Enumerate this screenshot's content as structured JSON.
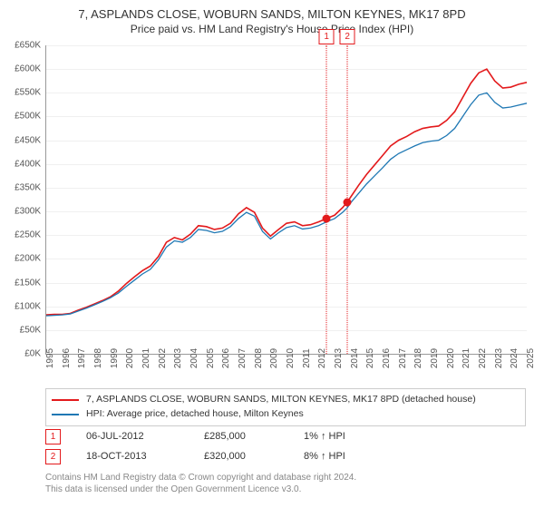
{
  "title_line1": "7, ASPLANDS CLOSE, WOBURN SANDS, MILTON KEYNES, MK17 8PD",
  "title_line2": "Price paid vs. HM Land Registry's House Price Index (HPI)",
  "chart": {
    "type": "line",
    "x_min": 1995,
    "x_max": 2025,
    "y_min": 0,
    "y_max": 650000,
    "y_tick_step": 50000,
    "x_tick_step": 1,
    "background_color": "#ffffff",
    "grid_color": "#f0f0f0",
    "axis_color": "#999999",
    "series": [
      {
        "name": "property",
        "label": "7, ASPLANDS CLOSE, WOBURN SANDS, MILTON KEYNES, MK17 8PD (detached house)",
        "color": "#e31a1c",
        "line_width": 1.6,
        "data": [
          [
            1995,
            82000
          ],
          [
            1995.5,
            83000
          ],
          [
            1996,
            83000
          ],
          [
            1996.5,
            85000
          ],
          [
            1997,
            92000
          ],
          [
            1997.5,
            98000
          ],
          [
            1998,
            105000
          ],
          [
            1998.5,
            112000
          ],
          [
            1999,
            120000
          ],
          [
            1999.5,
            132000
          ],
          [
            2000,
            148000
          ],
          [
            2000.5,
            162000
          ],
          [
            2001,
            175000
          ],
          [
            2001.5,
            185000
          ],
          [
            2002,
            205000
          ],
          [
            2002.5,
            235000
          ],
          [
            2003,
            245000
          ],
          [
            2003.5,
            240000
          ],
          [
            2004,
            252000
          ],
          [
            2004.5,
            270000
          ],
          [
            2005,
            268000
          ],
          [
            2005.5,
            262000
          ],
          [
            2006,
            265000
          ],
          [
            2006.5,
            275000
          ],
          [
            2007,
            295000
          ],
          [
            2007.5,
            308000
          ],
          [
            2008,
            298000
          ],
          [
            2008.5,
            265000
          ],
          [
            2009,
            248000
          ],
          [
            2009.5,
            262000
          ],
          [
            2010,
            275000
          ],
          [
            2010.5,
            278000
          ],
          [
            2011,
            270000
          ],
          [
            2011.5,
            272000
          ],
          [
            2012,
            278000
          ],
          [
            2012.5,
            285000
          ],
          [
            2013,
            292000
          ],
          [
            2013.5,
            308000
          ],
          [
            2013.8,
            320000
          ],
          [
            2014,
            330000
          ],
          [
            2014.5,
            355000
          ],
          [
            2015,
            378000
          ],
          [
            2015.5,
            398000
          ],
          [
            2016,
            418000
          ],
          [
            2016.5,
            438000
          ],
          [
            2017,
            450000
          ],
          [
            2017.5,
            458000
          ],
          [
            2018,
            468000
          ],
          [
            2018.5,
            475000
          ],
          [
            2019,
            478000
          ],
          [
            2019.5,
            480000
          ],
          [
            2020,
            492000
          ],
          [
            2020.5,
            510000
          ],
          [
            2021,
            540000
          ],
          [
            2021.5,
            570000
          ],
          [
            2022,
            592000
          ],
          [
            2022.5,
            600000
          ],
          [
            2023,
            575000
          ],
          [
            2023.5,
            560000
          ],
          [
            2024,
            562000
          ],
          [
            2024.5,
            568000
          ],
          [
            2025,
            572000
          ]
        ]
      },
      {
        "name": "hpi",
        "label": "HPI: Average price, detached house, Milton Keynes",
        "color": "#1f78b4",
        "line_width": 1.3,
        "data": [
          [
            1995,
            80000
          ],
          [
            1995.5,
            81000
          ],
          [
            1996,
            82000
          ],
          [
            1996.5,
            84000
          ],
          [
            1997,
            90000
          ],
          [
            1997.5,
            96000
          ],
          [
            1998,
            103000
          ],
          [
            1998.5,
            110000
          ],
          [
            1999,
            118000
          ],
          [
            1999.5,
            128000
          ],
          [
            2000,
            142000
          ],
          [
            2000.5,
            155000
          ],
          [
            2001,
            168000
          ],
          [
            2001.5,
            178000
          ],
          [
            2002,
            198000
          ],
          [
            2002.5,
            225000
          ],
          [
            2003,
            238000
          ],
          [
            2003.5,
            235000
          ],
          [
            2004,
            245000
          ],
          [
            2004.5,
            262000
          ],
          [
            2005,
            260000
          ],
          [
            2005.5,
            255000
          ],
          [
            2006,
            258000
          ],
          [
            2006.5,
            268000
          ],
          [
            2007,
            285000
          ],
          [
            2007.5,
            298000
          ],
          [
            2008,
            290000
          ],
          [
            2008.5,
            258000
          ],
          [
            2009,
            242000
          ],
          [
            2009.5,
            255000
          ],
          [
            2010,
            266000
          ],
          [
            2010.5,
            270000
          ],
          [
            2011,
            263000
          ],
          [
            2011.5,
            265000
          ],
          [
            2012,
            270000
          ],
          [
            2012.5,
            278000
          ],
          [
            2013,
            285000
          ],
          [
            2013.5,
            298000
          ],
          [
            2013.8,
            308000
          ],
          [
            2014,
            318000
          ],
          [
            2014.5,
            338000
          ],
          [
            2015,
            358000
          ],
          [
            2015.5,
            375000
          ],
          [
            2016,
            392000
          ],
          [
            2016.5,
            410000
          ],
          [
            2017,
            422000
          ],
          [
            2017.5,
            430000
          ],
          [
            2018,
            438000
          ],
          [
            2018.5,
            445000
          ],
          [
            2019,
            448000
          ],
          [
            2019.5,
            450000
          ],
          [
            2020,
            460000
          ],
          [
            2020.5,
            475000
          ],
          [
            2021,
            500000
          ],
          [
            2021.5,
            525000
          ],
          [
            2022,
            545000
          ],
          [
            2022.5,
            550000
          ],
          [
            2023,
            530000
          ],
          [
            2023.5,
            518000
          ],
          [
            2024,
            520000
          ],
          [
            2024.5,
            524000
          ],
          [
            2025,
            528000
          ]
        ]
      }
    ],
    "sale_markers": [
      {
        "index": 1,
        "x": 2012.5,
        "y": 285000,
        "color": "#e31a1c"
      },
      {
        "index": 2,
        "x": 2013.8,
        "y": 320000,
        "color": "#e31a1c"
      }
    ],
    "marker_radius": 4.5,
    "callout_top_offset": -18
  },
  "sales": [
    {
      "index": "1",
      "date": "06-JUL-2012",
      "price": "£285,000",
      "hpi": "1% ↑ HPI",
      "color": "#e31a1c"
    },
    {
      "index": "2",
      "date": "18-OCT-2013",
      "price": "£320,000",
      "hpi": "8% ↑ HPI",
      "color": "#e31a1c"
    }
  ],
  "footnote_line1": "Contains HM Land Registry data © Crown copyright and database right 2024.",
  "footnote_line2": "This data is licensed under the Open Government Licence v3.0.",
  "ytick_prefix": "£",
  "ytick_suffix": "K"
}
